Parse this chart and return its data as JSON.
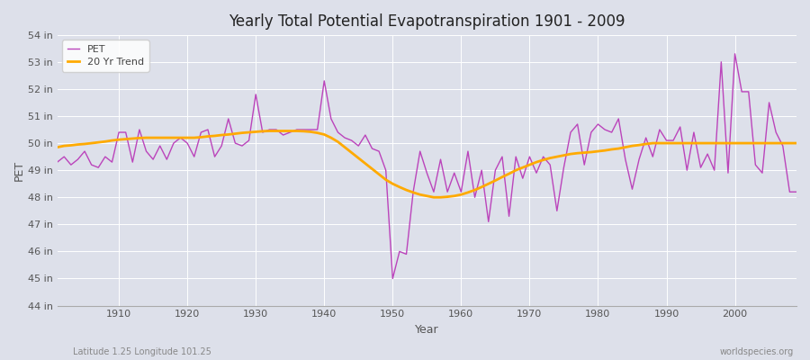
{
  "title": "Yearly Total Potential Evapotranspiration 1901 - 2009",
  "ylabel": "PET",
  "xlabel": "Year",
  "subtitle_left": "Latitude 1.25 Longitude 101.25",
  "subtitle_right": "worldspecies.org",
  "pet_color": "#bb44bb",
  "trend_color": "#ffaa00",
  "bg_color": "#dde0ea",
  "ylim": [
    44,
    54
  ],
  "years": [
    1901,
    1902,
    1903,
    1904,
    1905,
    1906,
    1907,
    1908,
    1909,
    1910,
    1911,
    1912,
    1913,
    1914,
    1915,
    1916,
    1917,
    1918,
    1919,
    1920,
    1921,
    1922,
    1923,
    1924,
    1925,
    1926,
    1927,
    1928,
    1929,
    1930,
    1931,
    1932,
    1933,
    1934,
    1935,
    1936,
    1937,
    1938,
    1939,
    1940,
    1941,
    1942,
    1943,
    1944,
    1945,
    1946,
    1947,
    1948,
    1949,
    1950,
    1951,
    1952,
    1953,
    1954,
    1955,
    1956,
    1957,
    1958,
    1959,
    1960,
    1961,
    1962,
    1963,
    1964,
    1965,
    1966,
    1967,
    1968,
    1969,
    1970,
    1971,
    1972,
    1973,
    1974,
    1975,
    1976,
    1977,
    1978,
    1979,
    1980,
    1981,
    1982,
    1983,
    1984,
    1985,
    1986,
    1987,
    1988,
    1989,
    1990,
    1991,
    1992,
    1993,
    1994,
    1995,
    1996,
    1997,
    1998,
    1999,
    2000,
    2001,
    2002,
    2003,
    2004,
    2005,
    2006,
    2007,
    2008,
    2009
  ],
  "pet": [
    49.3,
    49.5,
    49.2,
    49.4,
    49.7,
    49.2,
    49.1,
    49.5,
    49.3,
    50.4,
    50.4,
    49.3,
    50.5,
    49.7,
    49.4,
    49.9,
    49.4,
    50.0,
    50.2,
    50.0,
    49.5,
    50.4,
    50.5,
    49.5,
    49.9,
    50.9,
    50.0,
    49.9,
    50.1,
    51.8,
    50.4,
    50.5,
    50.5,
    50.3,
    50.4,
    50.5,
    50.5,
    50.5,
    50.5,
    52.3,
    50.9,
    50.4,
    50.2,
    50.1,
    49.9,
    50.3,
    49.8,
    49.7,
    49.0,
    45.0,
    46.0,
    45.9,
    48.2,
    49.7,
    48.9,
    48.2,
    49.4,
    48.2,
    48.9,
    48.2,
    49.7,
    48.0,
    49.0,
    47.1,
    49.0,
    49.5,
    47.3,
    49.5,
    48.7,
    49.5,
    48.9,
    49.5,
    49.2,
    47.5,
    49.1,
    50.4,
    50.7,
    49.2,
    50.4,
    50.7,
    50.5,
    50.4,
    50.9,
    49.4,
    48.3,
    49.4,
    50.2,
    49.5,
    50.5,
    50.1,
    50.1,
    50.6,
    49.0,
    50.4,
    49.1,
    49.6,
    49.0,
    53.0,
    48.9,
    53.3,
    51.9,
    51.9,
    49.2,
    48.9,
    51.5,
    50.4,
    49.9,
    48.2,
    48.2
  ],
  "trend": [
    49.85,
    49.9,
    49.92,
    49.95,
    49.97,
    50.0,
    50.03,
    50.06,
    50.1,
    50.13,
    50.15,
    50.17,
    50.19,
    50.2,
    50.2,
    50.2,
    50.2,
    50.2,
    50.2,
    50.2,
    50.2,
    50.22,
    50.25,
    50.27,
    50.3,
    50.32,
    50.35,
    50.38,
    50.4,
    50.42,
    50.44,
    50.45,
    50.45,
    50.45,
    50.45,
    50.45,
    50.44,
    50.42,
    50.38,
    50.32,
    50.2,
    50.05,
    49.85,
    49.65,
    49.45,
    49.25,
    49.05,
    48.85,
    48.65,
    48.5,
    48.38,
    48.27,
    48.18,
    48.1,
    48.05,
    48.0,
    48.0,
    48.02,
    48.05,
    48.1,
    48.18,
    48.27,
    48.38,
    48.5,
    48.62,
    48.75,
    48.87,
    49.0,
    49.1,
    49.2,
    49.3,
    49.38,
    49.45,
    49.5,
    49.55,
    49.6,
    49.63,
    49.65,
    49.67,
    49.7,
    49.73,
    49.77,
    49.8,
    49.85,
    49.9,
    49.93,
    49.97,
    50.0,
    50.0,
    50.0,
    50.0,
    50.0,
    50.0,
    50.0,
    50.0,
    50.0,
    50.0,
    50.0,
    50.0,
    50.0,
    50.0,
    50.0,
    50.0,
    50.0,
    50.0,
    50.0,
    50.0,
    50.0,
    50.0
  ]
}
